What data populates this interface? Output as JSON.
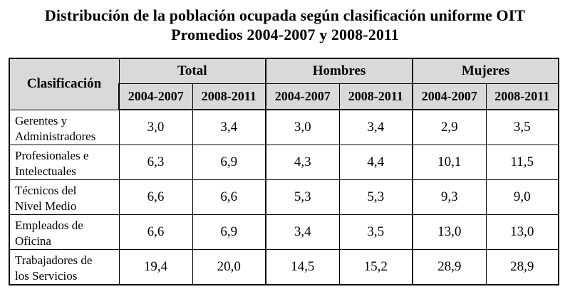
{
  "title": {
    "line1": "Distribución de la población ocupada según clasificación uniforme OIT",
    "line2": "Promedios 2004-2007 y 2008-2011"
  },
  "table": {
    "row_header": "Clasificación",
    "groups": [
      "Total",
      "Hombres",
      "Mujeres"
    ],
    "periods": [
      "2004-2007",
      "2008-2011",
      "2004-2007",
      "2008-2011",
      "2004-2007",
      "2008-2011"
    ],
    "rows": [
      {
        "label_line1": "Gerentes y",
        "label_line2": "Administradores",
        "values": [
          "3,0",
          "3,4",
          "3,0",
          "3,4",
          "2,9",
          "3,5"
        ]
      },
      {
        "label_line1": "Profesionales e",
        "label_line2": "Intelectuales",
        "values": [
          "6,3",
          "6,9",
          "4,3",
          "4,4",
          "10,1",
          "11,5"
        ]
      },
      {
        "label_line1": "Técnicos del",
        "label_line2": "Nivel Medio",
        "values": [
          "6,6",
          "6,6",
          "5,3",
          "5,3",
          "9,3",
          "9,0"
        ]
      },
      {
        "label_line1": "Empleados de",
        "label_line2": "Oficina",
        "values": [
          "6,6",
          "6,9",
          "3,4",
          "3,5",
          "13,0",
          "13,0"
        ]
      },
      {
        "label_line1": "Trabajadores de",
        "label_line2": "los Servicios",
        "values": [
          "19,4",
          "20,0",
          "14,5",
          "15,2",
          "28,9",
          "28,9"
        ]
      }
    ]
  }
}
